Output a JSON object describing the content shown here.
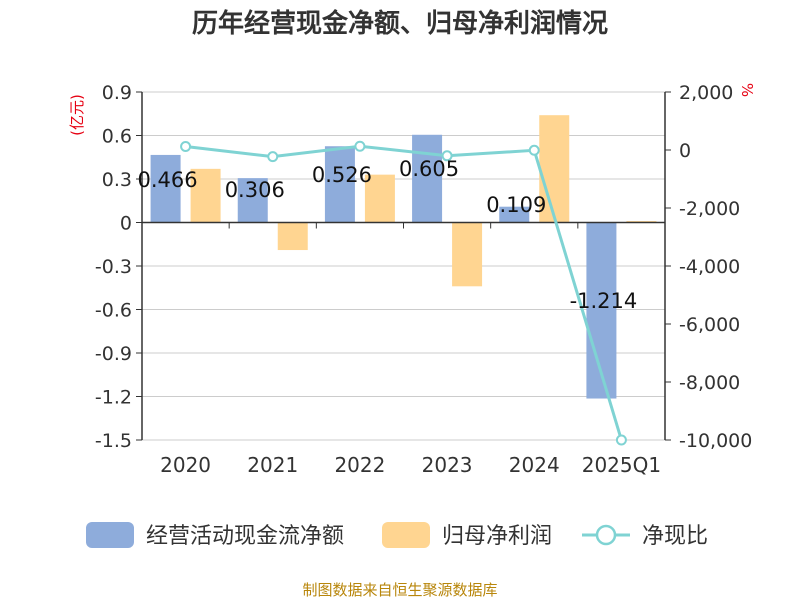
{
  "title": "历年经营现金净额、归母净利润情况",
  "source": "制图数据来自恒生聚源数据库",
  "colors": {
    "cash_flow": "#8eacdb",
    "net_profit": "#ffd591",
    "ratio_line": "#7fd3d3",
    "unit": "#e60012",
    "source": "#b8860b",
    "grid": "#cccccc",
    "axis": "#333333"
  },
  "chart_data": {
    "type": "bar",
    "title": "历年经营现金净额、归母净利润情况",
    "categories": [
      "2020",
      "2021",
      "2022",
      "2023",
      "2024",
      "2025Q1"
    ],
    "left_axis": {
      "unit": "(亿元)",
      "ylim": [
        -1.5,
        0.9
      ],
      "ticks": [
        "0.9",
        "0.6",
        "0.3",
        "0",
        "-0.3",
        "-0.6",
        "-0.9",
        "-1.2",
        "-1.5"
      ],
      "tick_values": [
        0.9,
        0.6,
        0.3,
        0,
        -0.3,
        -0.6,
        -0.9,
        -1.2,
        -1.5
      ]
    },
    "right_axis": {
      "unit": "%",
      "ylim": [
        -10000,
        2000
      ],
      "ticks": [
        "2,000",
        "0",
        "-2,000",
        "-4,000",
        "-6,000",
        "-8,000",
        "-10,000"
      ],
      "tick_values": [
        2000,
        0,
        -2000,
        -4000,
        -6000,
        -8000,
        -10000
      ]
    },
    "series": [
      {
        "name": "经营活动现金流净额",
        "type": "bar",
        "axis": "left",
        "values": [
          0.466,
          0.306,
          0.526,
          0.605,
          0.109,
          -1.214
        ],
        "labels": [
          "0.466",
          "0.306",
          "0.526",
          "0.605",
          "0.109",
          "-1.214"
        ]
      },
      {
        "name": "归母净利润",
        "type": "bar",
        "axis": "left",
        "values": [
          0.37,
          -0.19,
          0.33,
          -0.44,
          0.74,
          0.01
        ]
      },
      {
        "name": "净现比",
        "type": "line",
        "axis": "right",
        "values": [
          120,
          -230,
          130,
          -200,
          -10,
          -10000
        ]
      }
    ],
    "grid": true,
    "legend_position": "bottom"
  }
}
